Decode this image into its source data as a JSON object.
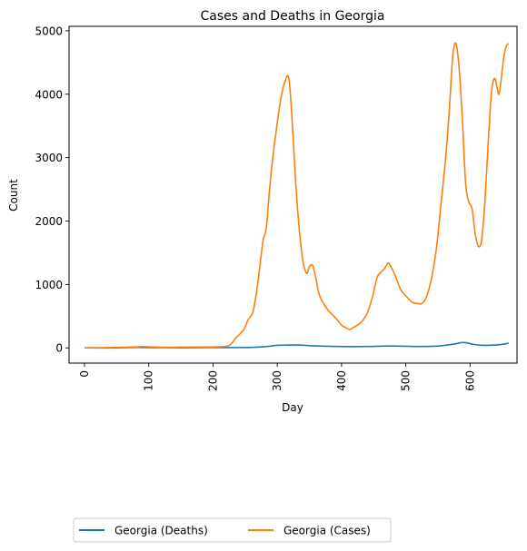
{
  "chart_data": {
    "type": "line",
    "title": "Cases and Deaths in Georgia",
    "xlabel": "Day",
    "ylabel": "Count",
    "xlim": [
      -24,
      673
    ],
    "ylim": [
      -240,
      5070
    ],
    "xticks": [
      0,
      100,
      200,
      300,
      400,
      500,
      600
    ],
    "yticks": [
      0,
      1000,
      2000,
      3000,
      4000,
      5000
    ],
    "grid": false,
    "legend_position": "below plot, left",
    "series": [
      {
        "name": "Georgia (Deaths)",
        "color": "#1f77b4",
        "x": [
          0,
          50,
          80,
          90,
          120,
          160,
          200,
          230,
          260,
          280,
          300,
          320,
          335,
          350,
          380,
          410,
          440,
          470,
          490,
          520,
          550,
          575,
          590,
          605,
          620,
          640,
          650,
          660
        ],
        "y": [
          0,
          0,
          8,
          6,
          4,
          3,
          5,
          5,
          8,
          18,
          40,
          45,
          45,
          35,
          25,
          20,
          22,
          30,
          28,
          22,
          30,
          60,
          85,
          55,
          40,
          45,
          55,
          75
        ]
      },
      {
        "name": "Georgia (Cases)",
        "color": "#ff7f0e",
        "x": [
          0,
          40,
          80,
          90,
          120,
          160,
          200,
          220,
          228,
          235,
          240,
          248,
          255,
          262,
          268,
          273,
          278,
          283,
          288,
          293,
          298,
          305,
          312,
          318,
          323,
          330,
          338,
          345,
          350,
          355,
          360,
          365,
          372,
          380,
          388,
          395,
          400,
          408,
          413,
          418,
          425,
          432,
          440,
          448,
          455,
          460,
          465,
          470,
          473,
          478,
          485,
          492,
          500,
          510,
          518,
          525,
          532,
          540,
          548,
          555,
          562,
          568,
          573,
          578,
          583,
          588,
          593,
          598,
          603,
          608,
          613,
          618,
          623,
          628,
          633,
          638,
          642,
          645,
          648,
          652,
          656,
          660
        ],
        "y": [
          0,
          5,
          15,
          20,
          10,
          12,
          15,
          25,
          60,
          150,
          200,
          290,
          450,
          560,
          900,
          1300,
          1700,
          1900,
          2500,
          3000,
          3400,
          3900,
          4200,
          4250,
          3600,
          2400,
          1500,
          1180,
          1280,
          1300,
          1100,
          850,
          700,
          580,
          500,
          420,
          360,
          310,
          290,
          320,
          360,
          420,
          550,
          800,
          1100,
          1180,
          1230,
          1300,
          1340,
          1260,
          1100,
          920,
          820,
          720,
          700,
          700,
          800,
          1100,
          1600,
          2300,
          3000,
          3800,
          4600,
          4800,
          4400,
          3600,
          2600,
          2300,
          2200,
          1800,
          1600,
          1700,
          2300,
          3200,
          4000,
          4250,
          4100,
          4000,
          4200,
          4550,
          4750,
          4800
        ]
      }
    ]
  }
}
